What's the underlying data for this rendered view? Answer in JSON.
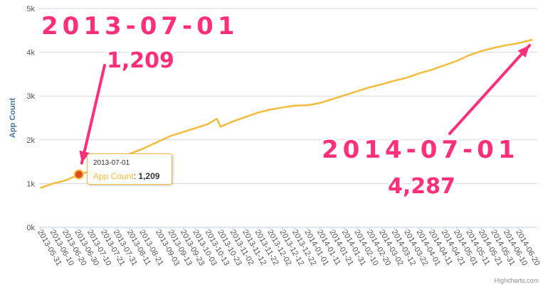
{
  "chart_data": {
    "type": "line",
    "ylabel": "App Count",
    "ylim": [
      0,
      5000
    ],
    "y_ticks": [
      "0k",
      "1k",
      "2k",
      "3k",
      "4k",
      "5k"
    ],
    "x_tick_labels": [
      "2013-05-31",
      "2013-06-10",
      "2013-06-20",
      "2013-06-30",
      "2013-07-10",
      "2013-07-21",
      "2013-07-31",
      "2013-08-11",
      "2013-08-21",
      "2013-09-03",
      "2013-09-13",
      "2013-09-23",
      "2013-10-03",
      "2013-10-13",
      "2013-10-23",
      "2013-11-02",
      "2013-11-12",
      "2013-11-22",
      "2013-12-02",
      "2013-12-12",
      "2013-12-22",
      "2014-01-01",
      "2014-01-11",
      "2014-01-21",
      "2014-01-31",
      "2014-02-10",
      "2014-02-20",
      "2014-03-02",
      "2014-03-12",
      "2014-03-22",
      "2014-04-01",
      "2014-04-11",
      "2014-04-21",
      "2014-05-01",
      "2014-05-11",
      "2014-05-21",
      "2014-05-31",
      "2014-06-10",
      "2014-06-20"
    ],
    "x_range": [
      "2013-05-30",
      "2014-07-05"
    ],
    "grid": true,
    "series": [
      {
        "name": "App Count",
        "color": "#f2bc3c",
        "points": [
          [
            "2013-05-31",
            900
          ],
          [
            "2013-06-10",
            1000
          ],
          [
            "2013-06-20",
            1070
          ],
          [
            "2013-06-30",
            1190
          ],
          [
            "2013-07-01",
            1209
          ],
          [
            "2013-07-10",
            1280
          ],
          [
            "2013-07-21",
            1420
          ],
          [
            "2013-07-31",
            1560
          ],
          [
            "2013-08-11",
            1680
          ],
          [
            "2013-08-21",
            1790
          ],
          [
            "2013-09-03",
            1960
          ],
          [
            "2013-09-13",
            2090
          ],
          [
            "2013-09-23",
            2180
          ],
          [
            "2013-10-03",
            2270
          ],
          [
            "2013-10-13",
            2360
          ],
          [
            "2013-10-20",
            2480
          ],
          [
            "2013-10-23",
            2300
          ],
          [
            "2013-11-02",
            2420
          ],
          [
            "2013-11-12",
            2520
          ],
          [
            "2013-11-22",
            2620
          ],
          [
            "2013-12-02",
            2690
          ],
          [
            "2013-12-12",
            2740
          ],
          [
            "2013-12-22",
            2780
          ],
          [
            "2014-01-01",
            2790
          ],
          [
            "2014-01-11",
            2840
          ],
          [
            "2014-01-21",
            2930
          ],
          [
            "2014-01-31",
            3020
          ],
          [
            "2014-02-10",
            3110
          ],
          [
            "2014-02-20",
            3200
          ],
          [
            "2014-03-02",
            3270
          ],
          [
            "2014-03-12",
            3350
          ],
          [
            "2014-03-22",
            3420
          ],
          [
            "2014-04-01",
            3520
          ],
          [
            "2014-04-11",
            3600
          ],
          [
            "2014-04-21",
            3700
          ],
          [
            "2014-05-01",
            3800
          ],
          [
            "2014-05-11",
            3930
          ],
          [
            "2014-05-21",
            4030
          ],
          [
            "2014-05-31",
            4100
          ],
          [
            "2014-06-10",
            4160
          ],
          [
            "2014-06-20",
            4210
          ],
          [
            "2014-07-01",
            4287
          ]
        ]
      }
    ],
    "tooltip": {
      "date": "2013-07-01",
      "series_label": "App Count",
      "value": "1,209"
    },
    "annotations": [
      {
        "date_text": "2013-07-01",
        "value_text": "1,209",
        "target": [
          "2013-07-01",
          1209
        ]
      },
      {
        "date_text": "2014-07-01",
        "value_text": "4,287",
        "target": [
          "2014-07-01",
          4287
        ]
      }
    ],
    "annotation_color": "#ff2f7a",
    "credits": "Highcharts.com"
  }
}
